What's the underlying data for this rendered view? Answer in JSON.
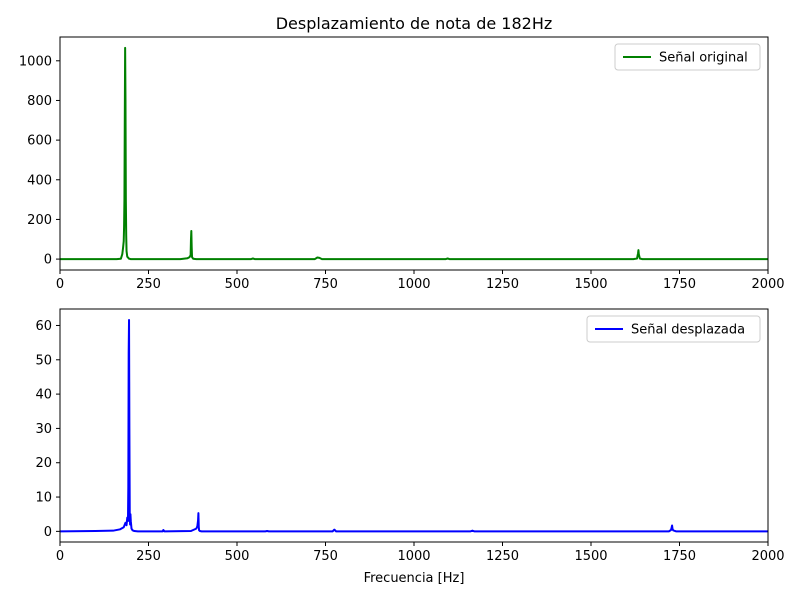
{
  "chart_data": [
    {
      "type": "line",
      "title": "Desplazamiento de nota de 182Hz",
      "xlabel": "",
      "ylabel": "",
      "xlim": [
        0,
        2000
      ],
      "ylim": [
        -55,
        1120
      ],
      "xticks": [
        0,
        250,
        500,
        750,
        1000,
        1250,
        1500,
        1750,
        2000
      ],
      "yticks": [
        0,
        200,
        400,
        600,
        800,
        1000
      ],
      "grid": false,
      "legend_position": "top-right",
      "series": [
        {
          "name": "Señal original",
          "color": "#008000",
          "x": [
            0,
            160,
            172,
            176,
            178,
            180,
            181,
            182,
            183,
            184,
            185,
            186,
            187,
            188,
            190,
            195,
            200,
            340,
            360,
            366,
            369,
            370,
            371,
            372,
            373,
            376,
            385,
            540,
            545,
            550,
            720,
            727,
            733,
            740,
            910,
            1090,
            1095,
            1100,
            1270,
            1450,
            1620,
            1630,
            1633,
            1634,
            1635,
            1638,
            1645,
            2000
          ],
          "y": [
            0,
            0,
            2,
            25,
            55,
            90,
            160,
            300,
            700,
            1065,
            800,
            300,
            120,
            40,
            12,
            2,
            0,
            0,
            4,
            10,
            20,
            100,
            142,
            60,
            10,
            2,
            0,
            0,
            3,
            0,
            0,
            8,
            6,
            0,
            0,
            0,
            3,
            0,
            0,
            0,
            0,
            3,
            30,
            45,
            25,
            3,
            0,
            0
          ]
        }
      ]
    },
    {
      "type": "line",
      "title": "",
      "xlabel": "Frecuencia [Hz]",
      "ylabel": "",
      "xlim": [
        0,
        2000
      ],
      "ylim": [
        -3.1,
        64.8
      ],
      "xticks": [
        0,
        250,
        500,
        750,
        1000,
        1250,
        1500,
        1750,
        2000
      ],
      "yticks": [
        0,
        10,
        20,
        30,
        40,
        50,
        60
      ],
      "grid": false,
      "legend_position": "top-right",
      "series": [
        {
          "name": "Señal desplazada",
          "color": "#0000ff",
          "x": [
            0,
            100,
            150,
            170,
            180,
            185,
            188,
            190,
            192,
            193,
            194,
            195,
            196,
            197,
            198,
            199,
            200,
            202,
            205,
            210,
            220,
            290,
            292,
            295,
            370,
            385,
            388,
            390,
            391,
            392,
            393,
            395,
            400,
            580,
            585,
            590,
            770,
            775,
            780,
            1160,
            1165,
            1170,
            1720,
            1726,
            1728,
            1729,
            1730,
            1732,
            1740,
            2000
          ],
          "y": [
            0,
            0.1,
            0.2,
            0.6,
            1.2,
            2.5,
            1.8,
            4.0,
            3.0,
            13.0,
            52.0,
            61.6,
            30.0,
            5.5,
            2.0,
            5.0,
            3.0,
            0.8,
            0.3,
            0.1,
            0,
            0,
            0.4,
            0,
            0.1,
            0.8,
            1.5,
            3.2,
            5.3,
            1.2,
            0.3,
            0.1,
            0,
            0,
            0.1,
            0,
            0,
            0.5,
            0,
            0,
            0.2,
            0,
            0,
            0.4,
            1.2,
            1.7,
            0.9,
            0.3,
            0,
            0
          ]
        }
      ]
    }
  ]
}
